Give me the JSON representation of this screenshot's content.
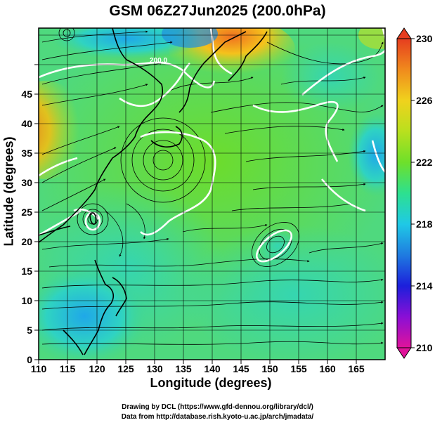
{
  "title": "GSM 06Z27Jun2025 (200.0hPa)",
  "xlabel": "Longitude (degrees)",
  "ylabel": "Latitude  (degrees)",
  "x_ticks": [
    "110",
    "115",
    "120",
    "125",
    "130",
    "135",
    "140",
    "145",
    "150",
    "155",
    "160",
    "165"
  ],
  "y_ticks": [
    "0",
    "5",
    "10",
    "15",
    "20",
    "25",
    "30",
    "35",
    "40",
    "45"
  ],
  "colorbar": {
    "ticks": [
      "230",
      "226",
      "222",
      "218",
      "214",
      "210"
    ],
    "min": 210,
    "max": 230,
    "colors": [
      "#e0139a",
      "#8a0fd6",
      "#1c1fdb",
      "#1f7be0",
      "#1fc9e6",
      "#2de08f",
      "#6ee02a",
      "#b9e01e",
      "#f0d21d",
      "#f08a1d",
      "#e63d1f"
    ]
  },
  "contour_labels": [
    "200.0"
  ],
  "credit_line1": "Drawing by DCL (https://www.gfd-dennou.org/library/dcl/)",
  "credit_line2": "Data from http://database.rish.kyoto-u.ac.jp/arch/jmadata/"
}
